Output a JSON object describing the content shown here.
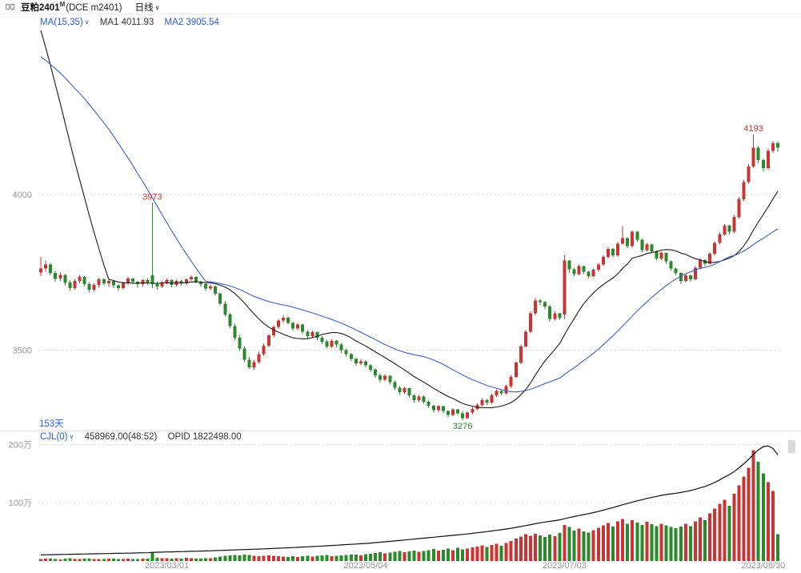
{
  "header": {
    "instrument": "豆粕2401",
    "instrument_sup": "M",
    "contract": "(DCE m2401)",
    "period": "日线"
  },
  "icons": {
    "chevron_down": "∨"
  },
  "main_indicator": {
    "label": "MA(15,35)",
    "ma1": "MA1 4011.93",
    "ma2": "MA2 3905.54"
  },
  "labels": {
    "days_visible": "153天"
  },
  "sub_indicator": {
    "label": "CJL(0)",
    "value": "458969.00(48:52)",
    "opid": "OPID 1822498.00"
  },
  "colors": {
    "up": "#cc3333",
    "down": "#2a8a2a",
    "ma1": "#1a1a1a",
    "ma2": "#3a5fd0",
    "oi": "#111111",
    "grid": "#d8d8d8",
    "axis_text": "#999999",
    "indicator_blue": "#2b5fd9"
  },
  "axes": {
    "price_ticks": [
      {
        "label": "4000",
        "value": 4000
      },
      {
        "label": "3500",
        "value": 3500
      }
    ],
    "volume_ticks": [
      {
        "label": "200万",
        "value": 2000000
      },
      {
        "label": "100万",
        "value": 1000000
      }
    ],
    "date_ticks": [
      {
        "label": "2023/03/01",
        "index": 26
      },
      {
        "label": "2023/05/04",
        "index": 67
      },
      {
        "label": "2023/07/03",
        "index": 108
      },
      {
        "label": "2023/08/30",
        "index": 149
      }
    ]
  },
  "chart_data": {
    "type": "candlestick+volume",
    "title": "豆粕2401 (DCE m2401) 日线",
    "price_range": [
      3250,
      4560
    ],
    "volume_range": [
      0,
      2100000
    ],
    "annotations": [
      {
        "text": "3973",
        "index": 23,
        "price": 3973,
        "side": "above",
        "color": "up"
      },
      {
        "text": "4193",
        "index": 147,
        "price": 4193,
        "side": "above",
        "color": "up"
      },
      {
        "text": "3276",
        "index": 87,
        "price": 3276,
        "side": "below",
        "color": "down"
      }
    ],
    "pre_window_closes": [
      4180,
      4210,
      4195,
      4240,
      4265,
      4290,
      4310,
      4285,
      4320,
      4350,
      4380,
      4420,
      4400,
      4450,
      4480,
      4520,
      4555,
      4540,
      4580,
      4610,
      4590,
      4620,
      4650,
      4640,
      4665,
      4650,
      4630,
      4600,
      4580,
      4560,
      4540,
      4510,
      4480,
      4420
    ],
    "candles": [
      [
        3750,
        3800,
        3738,
        3762
      ],
      [
        3762,
        3788,
        3752,
        3775
      ],
      [
        3775,
        3780,
        3740,
        3748
      ],
      [
        3748,
        3755,
        3720,
        3730
      ],
      [
        3730,
        3750,
        3722,
        3742
      ],
      [
        3742,
        3745,
        3708,
        3718
      ],
      [
        3718,
        3725,
        3690,
        3700
      ],
      [
        3700,
        3728,
        3695,
        3722
      ],
      [
        3722,
        3742,
        3715,
        3735
      ],
      [
        3735,
        3738,
        3705,
        3712
      ],
      [
        3712,
        3718,
        3685,
        3695
      ],
      [
        3695,
        3715,
        3688,
        3710
      ],
      [
        3710,
        3732,
        3702,
        3728
      ],
      [
        3728,
        3730,
        3708,
        3715
      ],
      [
        3715,
        3728,
        3705,
        3722
      ],
      [
        3722,
        3725,
        3700,
        3708
      ],
      [
        3708,
        3712,
        3690,
        3700
      ],
      [
        3700,
        3720,
        3695,
        3715
      ],
      [
        3715,
        3735,
        3710,
        3730
      ],
      [
        3730,
        3732,
        3712,
        3720
      ],
      [
        3720,
        3722,
        3702,
        3712
      ],
      [
        3712,
        3728,
        3705,
        3725
      ],
      [
        3725,
        3730,
        3710,
        3718
      ],
      [
        3740,
        3973,
        3700,
        3712
      ],
      [
        3712,
        3720,
        3695,
        3705
      ],
      [
        3705,
        3722,
        3700,
        3718
      ],
      [
        3718,
        3730,
        3712,
        3725
      ],
      [
        3725,
        3728,
        3702,
        3710
      ],
      [
        3710,
        3726,
        3705,
        3722
      ],
      [
        3722,
        3725,
        3706,
        3715
      ],
      [
        3715,
        3732,
        3710,
        3728
      ],
      [
        3728,
        3740,
        3722,
        3735
      ],
      [
        3735,
        3738,
        3715,
        3720
      ],
      [
        3720,
        3722,
        3705,
        3712
      ],
      [
        3712,
        3715,
        3690,
        3698
      ],
      [
        3698,
        3710,
        3692,
        3705
      ],
      [
        3705,
        3708,
        3675,
        3682
      ],
      [
        3682,
        3685,
        3645,
        3650
      ],
      [
        3650,
        3658,
        3608,
        3615
      ],
      [
        3615,
        3620,
        3570,
        3578
      ],
      [
        3578,
        3585,
        3532,
        3540
      ],
      [
        3540,
        3548,
        3498,
        3505
      ],
      [
        3505,
        3512,
        3462,
        3470
      ],
      [
        3470,
        3478,
        3440,
        3445
      ],
      [
        3445,
        3468,
        3438,
        3462
      ],
      [
        3462,
        3495,
        3458,
        3488
      ],
      [
        3488,
        3522,
        3482,
        3515
      ],
      [
        3515,
        3552,
        3510,
        3548
      ],
      [
        3548,
        3580,
        3542,
        3575
      ],
      [
        3575,
        3600,
        3568,
        3595
      ],
      [
        3595,
        3612,
        3588,
        3605
      ],
      [
        3605,
        3608,
        3582,
        3588
      ],
      [
        3588,
        3592,
        3562,
        3570
      ],
      [
        3570,
        3588,
        3565,
        3582
      ],
      [
        3582,
        3585,
        3552,
        3560
      ],
      [
        3560,
        3565,
        3538,
        3545
      ],
      [
        3545,
        3562,
        3540,
        3558
      ],
      [
        3558,
        3560,
        3532,
        3540
      ],
      [
        3540,
        3545,
        3520,
        3528
      ],
      [
        3528,
        3532,
        3505,
        3512
      ],
      [
        3512,
        3535,
        3508,
        3530
      ],
      [
        3530,
        3532,
        3510,
        3518
      ],
      [
        3518,
        3522,
        3492,
        3500
      ],
      [
        3500,
        3505,
        3480,
        3488
      ],
      [
        3488,
        3492,
        3465,
        3472
      ],
      [
        3472,
        3476,
        3450,
        3458
      ],
      [
        3458,
        3472,
        3452,
        3465
      ],
      [
        3465,
        3468,
        3445,
        3452
      ],
      [
        3452,
        3455,
        3430,
        3438
      ],
      [
        3438,
        3442,
        3412,
        3420
      ],
      [
        3420,
        3425,
        3398,
        3405
      ],
      [
        3405,
        3422,
        3400,
        3418
      ],
      [
        3418,
        3420,
        3390,
        3398
      ],
      [
        3398,
        3402,
        3372,
        3380
      ],
      [
        3380,
        3385,
        3358,
        3365
      ],
      [
        3365,
        3382,
        3360,
        3378
      ],
      [
        3378,
        3380,
        3348,
        3355
      ],
      [
        3355,
        3358,
        3332,
        3340
      ],
      [
        3340,
        3356,
        3335,
        3352
      ],
      [
        3352,
        3355,
        3328,
        3335
      ],
      [
        3335,
        3338,
        3315,
        3322
      ],
      [
        3322,
        3325,
        3300,
        3308
      ],
      [
        3308,
        3324,
        3302,
        3320
      ],
      [
        3320,
        3322,
        3298,
        3305
      ],
      [
        3305,
        3308,
        3285,
        3292
      ],
      [
        3292,
        3314,
        3288,
        3310
      ],
      [
        3310,
        3312,
        3292,
        3298
      ],
      [
        3298,
        3305,
        3276,
        3282
      ],
      [
        3282,
        3304,
        3280,
        3300
      ],
      [
        3300,
        3318,
        3295,
        3312
      ],
      [
        3312,
        3330,
        3308,
        3325
      ],
      [
        3325,
        3345,
        3320,
        3340
      ],
      [
        3340,
        3342,
        3325,
        3332
      ],
      [
        3332,
        3360,
        3328,
        3355
      ],
      [
        3355,
        3375,
        3350,
        3370
      ],
      [
        3370,
        3372,
        3355,
        3362
      ],
      [
        3362,
        3390,
        3358,
        3385
      ],
      [
        3385,
        3420,
        3380,
        3415
      ],
      [
        3415,
        3465,
        3410,
        3460
      ],
      [
        3460,
        3518,
        3455,
        3512
      ],
      [
        3512,
        3565,
        3508,
        3560
      ],
      [
        3560,
        3625,
        3555,
        3618
      ],
      [
        3618,
        3668,
        3612,
        3660
      ],
      [
        3660,
        3665,
        3645,
        3655
      ],
      [
        3655,
        3658,
        3632,
        3640
      ],
      [
        3640,
        3645,
        3592,
        3600
      ],
      [
        3600,
        3625,
        3595,
        3618
      ],
      [
        3618,
        3620,
        3598,
        3605
      ],
      [
        3615,
        3805,
        3600,
        3788
      ],
      [
        3788,
        3790,
        3748,
        3760
      ],
      [
        3760,
        3765,
        3738,
        3745
      ],
      [
        3745,
        3775,
        3740,
        3770
      ],
      [
        3770,
        3772,
        3745,
        3752
      ],
      [
        3752,
        3755,
        3730,
        3738
      ],
      [
        3738,
        3762,
        3735,
        3758
      ],
      [
        3758,
        3780,
        3752,
        3775
      ],
      [
        3775,
        3805,
        3770,
        3800
      ],
      [
        3800,
        3830,
        3795,
        3825
      ],
      [
        3825,
        3828,
        3798,
        3805
      ],
      [
        3805,
        3848,
        3800,
        3842
      ],
      [
        3842,
        3898,
        3838,
        3860
      ],
      [
        3860,
        3862,
        3828,
        3835
      ],
      [
        3835,
        3885,
        3830,
        3880
      ],
      [
        3880,
        3882,
        3848,
        3855
      ],
      [
        3855,
        3858,
        3815,
        3822
      ],
      [
        3822,
        3845,
        3818,
        3840
      ],
      [
        3840,
        3842,
        3812,
        3818
      ],
      [
        3818,
        3820,
        3788,
        3795
      ],
      [
        3795,
        3816,
        3790,
        3812
      ],
      [
        3812,
        3814,
        3778,
        3785
      ],
      [
        3785,
        3788,
        3755,
        3762
      ],
      [
        3762,
        3765,
        3740,
        3748
      ],
      [
        3748,
        3750,
        3712,
        3722
      ],
      [
        3722,
        3745,
        3718,
        3740
      ],
      [
        3740,
        3742,
        3720,
        3728
      ],
      [
        3728,
        3770,
        3725,
        3765
      ],
      [
        3765,
        3795,
        3760,
        3790
      ],
      [
        3790,
        3792,
        3770,
        3778
      ],
      [
        3778,
        3815,
        3775,
        3810
      ],
      [
        3810,
        3850,
        3805,
        3845
      ],
      [
        3845,
        3878,
        3840,
        3872
      ],
      [
        3872,
        3905,
        3868,
        3900
      ],
      [
        3900,
        3902,
        3872,
        3880
      ],
      [
        3880,
        3935,
        3875,
        3928
      ],
      [
        3928,
        3992,
        3922,
        3985
      ],
      [
        3985,
        4048,
        3980,
        4040
      ],
      [
        4040,
        4098,
        4035,
        4090
      ],
      [
        4090,
        4193,
        4085,
        4150
      ],
      [
        4150,
        4155,
        4100,
        4110
      ],
      [
        4110,
        4115,
        4075,
        4085
      ],
      [
        4085,
        4148,
        4080,
        4140
      ],
      [
        4140,
        4172,
        4135,
        4165
      ],
      [
        4165,
        4170,
        4138,
        4150
      ]
    ],
    "volume": [
      32000,
      41000,
      38000,
      35000,
      30000,
      42000,
      45000,
      36000,
      33000,
      39000,
      44000,
      37000,
      35000,
      31000,
      38000,
      42000,
      36000,
      34000,
      40000,
      37000,
      35000,
      43000,
      39000,
      152000,
      58000,
      45000,
      49000,
      43000,
      47000,
      41000,
      52000,
      48000,
      44000,
      40000,
      46000,
      50000,
      62000,
      75000,
      88000,
      95000,
      102000,
      98000,
      110000,
      105000,
      92000,
      85000,
      90000,
      96000,
      88000,
      82000,
      78000,
      72000,
      80000,
      68000,
      85000,
      92000,
      76000,
      88000,
      95000,
      102000,
      84000,
      90000,
      98000,
      105000,
      112000,
      108000,
      95000,
      118000,
      125000,
      138000,
      150000,
      132000,
      145000,
      158000,
      172000,
      148000,
      165000,
      180000,
      155000,
      170000,
      188000,
      205000,
      178000,
      192000,
      210000,
      185000,
      225000,
      198000,
      215000,
      230000,
      248000,
      265000,
      240000,
      275000,
      295000,
      260000,
      310000,
      345000,
      385000,
      420000,
      460000,
      430000,
      470000,
      440000,
      410000,
      450000,
      425000,
      480000,
      620000,
      580000,
      520000,
      555000,
      510000,
      490000,
      530000,
      570000,
      610000,
      650000,
      590000,
      680000,
      720000,
      640000,
      700000,
      660000,
      620000,
      670000,
      630000,
      600000,
      640000,
      610000,
      580000,
      560000,
      590000,
      640000,
      600000,
      680000,
      750000,
      700000,
      820000,
      900000,
      980000,
      1050000,
      950000,
      1150000,
      1300000,
      1450000,
      1600000,
      1900000,
      1700000,
      1500000,
      1350000,
      1200000,
      458969
    ],
    "open_interest": [
      105000,
      107000,
      108500,
      110000,
      111000,
      113000,
      115000,
      116500,
      118000,
      120000,
      121500,
      123000,
      125000,
      126500,
      128000,
      130000,
      131500,
      133000,
      135000,
      136500,
      138000,
      139500,
      141000,
      148000,
      150000,
      152000,
      155000,
      157000,
      159000,
      161000,
      163500,
      166000,
      168000,
      170000,
      172500,
      175000,
      178000,
      181000,
      184000,
      187000,
      190000,
      193000,
      196000,
      199000,
      202000,
      205000,
      208000,
      211000,
      215000,
      219000,
      223000,
      227000,
      231000,
      235000,
      239000,
      243000,
      247000,
      251000,
      256000,
      261000,
      266000,
      271000,
      276000,
      281000,
      286000,
      291000,
      296000,
      301000,
      308000,
      315000,
      322000,
      329000,
      336000,
      344000,
      352000,
      360000,
      368000,
      376000,
      384000,
      392000,
      400000,
      408000,
      416000,
      424000,
      432000,
      440000,
      448000,
      456000,
      464000,
      474000,
      484000,
      494000,
      504000,
      515000,
      526000,
      537000,
      549000,
      562000,
      576000,
      591000,
      607000,
      623000,
      640000,
      655000,
      668000,
      680000,
      692000,
      705000,
      725000,
      745000,
      762000,
      780000,
      796000,
      812000,
      830000,
      850000,
      872000,
      895000,
      915000,
      940000,
      965000,
      985000,
      1010000,
      1032000,
      1052000,
      1072000,
      1090000,
      1108000,
      1125000,
      1140000,
      1152000,
      1162000,
      1175000,
      1192000,
      1208000,
      1230000,
      1255000,
      1278000,
      1310000,
      1348000,
      1390000,
      1438000,
      1480000,
      1535000,
      1598000,
      1668000,
      1745000,
      1828000,
      1905000,
      1962000,
      1975000,
      1930000,
      1822498
    ]
  }
}
